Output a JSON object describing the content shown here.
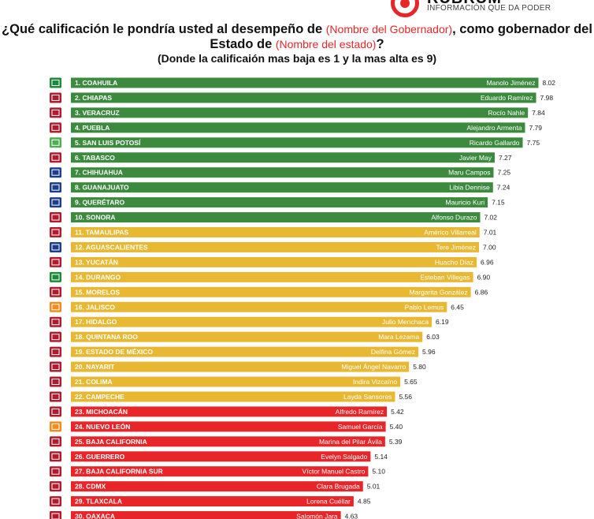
{
  "brand": {
    "name": "RUBRUM",
    "tagline": "INFORMACIÓN QUE DA PODER"
  },
  "header": {
    "title_part1": "¿Qué calificación le pondría usted al desempeño de",
    "title_highlight1": "(Nombre del Gobernador)",
    "title_part2": ", como gobernador del Estado de",
    "title_highlight2": "(Nombre del estado)",
    "title_part3": "?",
    "subtitle": "(Donde la calificaión mas baja es 1 y la mas alta es 9)"
  },
  "colors": {
    "green": "#3b8a3e",
    "yellow": "#e8b832",
    "red": "#e8262a",
    "morena": "#b01c2e",
    "pan": "#1b3f8b",
    "pri": "#1d8a3a",
    "pvem": "#4caf50",
    "mc": "#f28c1c"
  },
  "chart_data": {
    "type": "bar",
    "orientation": "horizontal",
    "title": "¿Qué calificación le pondría usted al desempeño de (Nombre del Gobernador), como gobernador del Estado de (Nombre del estado)?",
    "subtitle": "(Donde la calificaión mas baja es 1 y la mas alta es 9)",
    "xlim": [
      0,
      9
    ],
    "categories": [
      "1. COAHUILA",
      "2. CHIAPAS",
      "3. VERACRUZ",
      "4. PUEBLA",
      "5. SAN LUIS POTOSÍ",
      "6. TABASCO",
      "7. CHIHUAHUA",
      "8. GUANAJUATO",
      "9. QUERÉTARO",
      "10. SONORA",
      "11. TAMAULIPAS",
      "12. AGUASCALIENTES",
      "13. YUCATÁN",
      "14. DURANGO",
      "15. MORELOS",
      "16. JALISCO",
      "17. HIDALGO",
      "18. QUINTANA ROO",
      "19. ESTADO DE MÉXICO",
      "20. NAYARIT",
      "21. COLIMA",
      "22. CAMPECHE",
      "23. MICHOACÁN",
      "24. NUEVO LEÓN",
      "25. BAJA CALIFORNIA",
      "26. GUERRERO",
      "27. BAJA CALIFORNIA SUR",
      "28. CDMX",
      "29. TLAXCALA",
      "30. OAXACA"
    ],
    "governors": [
      "Manolo Jiménez",
      "Eduardo Ramírez",
      "Rocío Nahle",
      "Alejandro Armenta",
      "Ricardo Gallardo",
      "Javier May",
      "Maru Campos",
      "Libia Dennise",
      "Mauricio Kuri",
      "Alfonso Durazo",
      "Américo Villarreal",
      "Tere Jiménez",
      "Huacho Díaz",
      "Esteban Villegas",
      "Margarita González",
      "Pablo Lemus",
      "Julio Menchaca",
      "Mara Lezama",
      "Delfina Gómez",
      "Miguel Ángel Navarro",
      "Indira Vizcaíno",
      "Layda Sansores",
      "Alfredo Ramírez",
      "Samuel García",
      "Marina del Pilar Ávila",
      "Evelyn Salgado",
      "Víctor Manuel Castro",
      "Clara Brugada",
      "Lorena Cuéllar",
      "Salomón Jara"
    ],
    "values": [
      8.02,
      7.98,
      7.84,
      7.79,
      7.75,
      7.27,
      7.25,
      7.24,
      7.15,
      7.02,
      7.01,
      7.0,
      6.96,
      6.9,
      6.86,
      6.45,
      6.19,
      6.03,
      5.96,
      5.8,
      5.65,
      5.56,
      5.42,
      5.4,
      5.39,
      5.14,
      5.1,
      5.01,
      4.85,
      4.63
    ],
    "value_labels": [
      "8.02",
      "7.98",
      "7.84",
      "7.79",
      "7.75",
      "7.27",
      "7.25",
      "7.24",
      "7.15",
      "7.02",
      "7.01",
      "7.00",
      "6.96",
      "6.90",
      "6.86",
      "6.45",
      "6.19",
      "6.03",
      "5.96",
      "5.80",
      "5.65",
      "5.56",
      "5.42",
      "5.40",
      "5.39",
      "5.14",
      "5.10",
      "5.01",
      "4.85",
      "4.63"
    ],
    "bar_colors": [
      "green",
      "green",
      "green",
      "green",
      "green",
      "green",
      "green",
      "green",
      "green",
      "green",
      "yellow",
      "yellow",
      "yellow",
      "yellow",
      "yellow",
      "yellow",
      "yellow",
      "yellow",
      "yellow",
      "yellow",
      "yellow",
      "yellow",
      "red",
      "red",
      "red",
      "red",
      "red",
      "red",
      "red",
      "red"
    ],
    "party_icons": [
      "pri-logo",
      "morena-logo",
      "morena-logo",
      "morena-logo",
      "pvem-logo",
      "morena-logo",
      "pan-logo",
      "pan-logo",
      "pan-logo",
      "morena-logo",
      "morena-logo",
      "pan-logo",
      "morena-logo",
      "pri-logo",
      "morena-logo",
      "mc-logo",
      "morena-logo",
      "morena-logo",
      "morena-logo",
      "morena-logo",
      "morena-logo",
      "morena-logo",
      "morena-logo",
      "mc-logo",
      "morena-logo",
      "morena-logo",
      "morena-logo",
      "morena-logo",
      "morena-logo",
      "morena-logo"
    ]
  }
}
